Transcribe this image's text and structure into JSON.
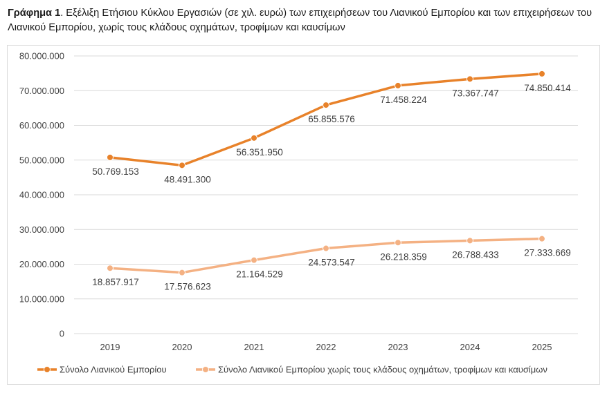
{
  "caption": {
    "label": "Γράφημα 1",
    "text": ". Εξέλιξη Ετήσιου Κύκλου Εργασιών (σε χιλ. ευρώ) των επιχειρήσεων του Λιανικού Εμπορίου και των επιχειρήσεων του Λιανικού Εμπορίου, χωρίς τους κλάδους οχημάτων, τροφίμων και καυσίμων"
  },
  "chart_data": {
    "type": "line",
    "categories": [
      "2019",
      "2020",
      "2021",
      "2022",
      "2023",
      "2024",
      "2025"
    ],
    "ylim": [
      0,
      80000000
    ],
    "yticks": [
      0,
      10000000,
      20000000,
      30000000,
      40000000,
      50000000,
      60000000,
      70000000,
      80000000
    ],
    "ytick_labels": [
      "0",
      "10.000.000",
      "20.000.000",
      "30.000.000",
      "40.000.000",
      "50.000.000",
      "60.000.000",
      "70.000.000",
      "80.000.000"
    ],
    "grid": true,
    "legend_position": "bottom",
    "series": [
      {
        "name": "Σύνολο Λιανικού Εμπορίου",
        "color": "#E8822A",
        "values": [
          50769153,
          48491300,
          56351950,
          65855576,
          71458224,
          73367747,
          74850414
        ],
        "labels": [
          "50.769.153",
          "48.491.300",
          "56.351.950",
          "65.855.576",
          "71.458.224",
          "73.367.747",
          "74.850.414"
        ]
      },
      {
        "name": "Σύνολο Λιανικού Εμπορίου χωρίς τους κλάδους οχημάτων, τροφίμων και καυσίμων",
        "color": "#F4B183",
        "values": [
          18857917,
          17576623,
          21164529,
          24573547,
          26218359,
          26788433,
          27333669
        ],
        "labels": [
          "18.857.917",
          "17.576.623",
          "21.164.529",
          "24.573.547",
          "26.218.359",
          "26.788.433",
          "27.333.669"
        ]
      }
    ]
  }
}
